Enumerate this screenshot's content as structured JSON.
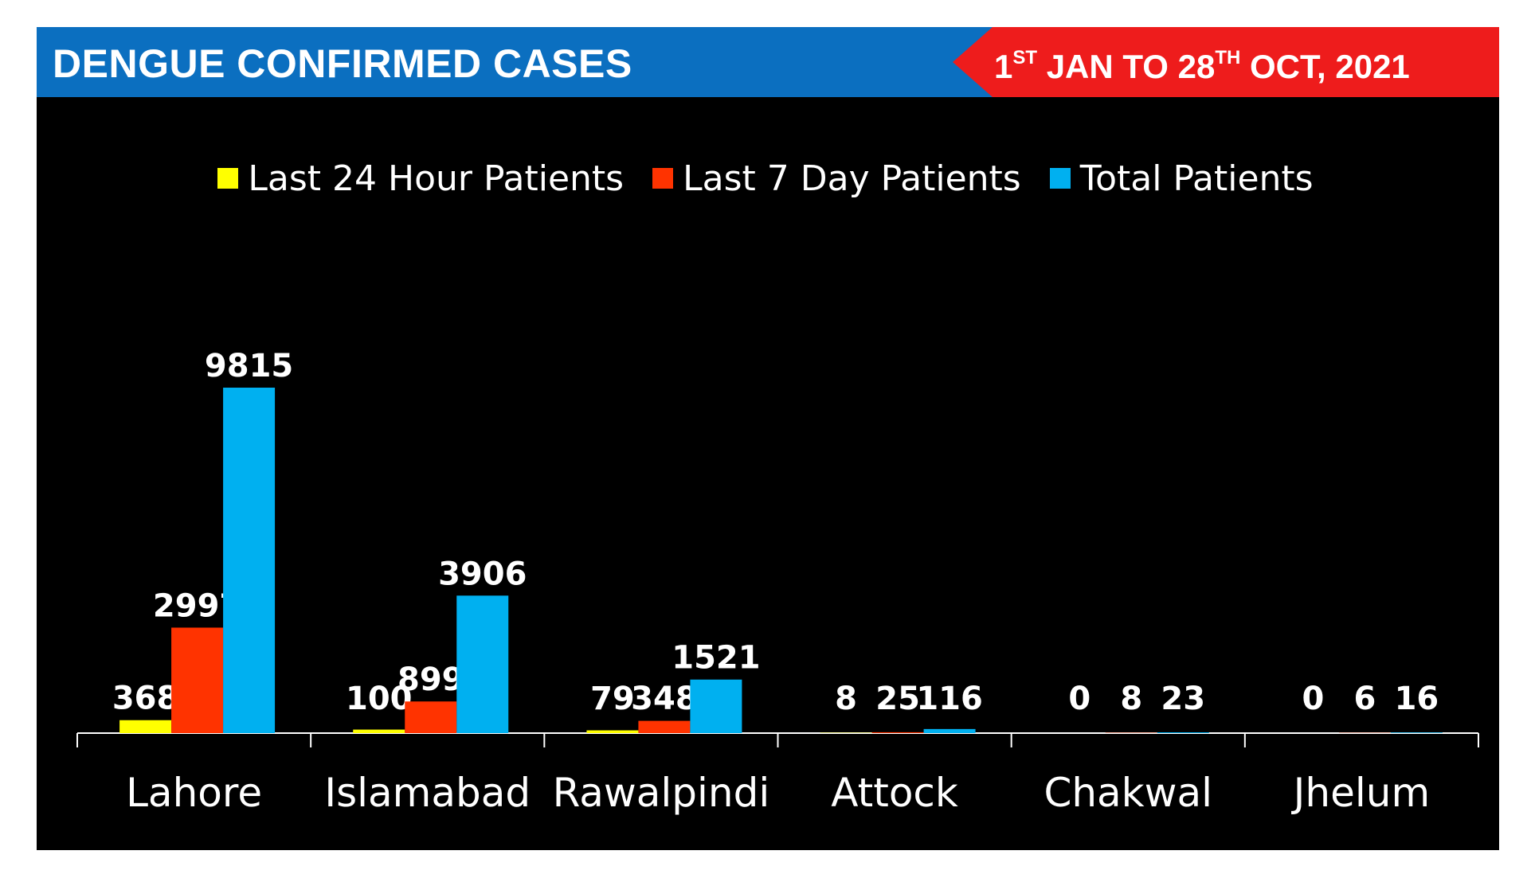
{
  "header": {
    "title": "DENGUE CONFIRMED CASES",
    "date_parts": [
      {
        "text": "1",
        "sup": "ST"
      },
      {
        "text": " JAN TO 28",
        "sup": "TH"
      },
      {
        "text": " OCT, 2021",
        "sup": ""
      }
    ]
  },
  "colors": {
    "header_blue": "#0b6fc0",
    "ribbon_red": "#ee1c1c",
    "background": "#000000"
  },
  "chart_data": {
    "type": "bar",
    "title": "",
    "xlabel": "",
    "ylabel": "",
    "ylim": [
      0,
      10000
    ],
    "legend_position": "top-center",
    "grid": false,
    "categories": [
      "Lahore",
      "Islamabad",
      "Rawalpindi",
      "Attock",
      "Chakwal",
      "Jhelum"
    ],
    "series": [
      {
        "name": "Last 24 Hour Patients",
        "color": "#ffff00",
        "values": [
          368,
          100,
          79,
          8,
          0,
          0
        ]
      },
      {
        "name": "Last 7 Day Patients",
        "color": "#ff3300",
        "values": [
          2997,
          899,
          348,
          25,
          8,
          6
        ]
      },
      {
        "name": "Total Patients",
        "color": "#00b0f0",
        "values": [
          9815,
          3906,
          1521,
          116,
          23,
          16
        ]
      }
    ]
  }
}
